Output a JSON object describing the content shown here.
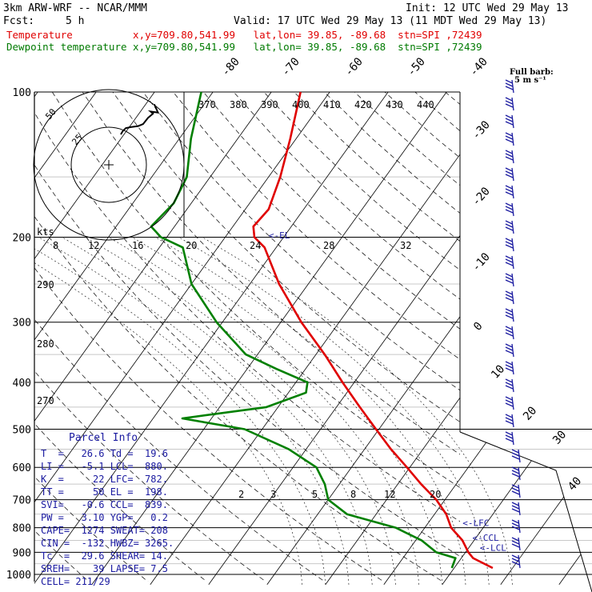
{
  "header": {
    "model": "3km ARW-WRF -- NCAR/MMM",
    "init": "Init: 12 UTC Wed 29 May 13",
    "fcst_label": "Fcst:",
    "fcst_value": "5 h",
    "valid": "Valid: 17 UTC Wed 29 May 13 (11 MDT Wed 29 May 13)",
    "temp_line": "Temperature          x,y=709.80,541.99   lat,lon= 39.85, -89.68  stn=SPI ,72439",
    "dew_line": "Dewpoint temperature x,y=709.80,541.99   lat,lon= 39.85, -89.68  stn=SPI ,72439",
    "barb_label_1": "Full barb:",
    "barb_label_2": "5 m s⁻¹"
  },
  "colors": {
    "temperature": "#e00000",
    "dewpoint": "#008000",
    "grid": "#000000",
    "info": "#1a1aa0"
  },
  "parcel_info": {
    "title": "Parcel Info",
    "rows": [
      "T  =   26.6 Td =  19.6",
      "LI =   -5.1 LCL=  880.",
      "K  =     22 LFC=  782.",
      "TT =     50 EL =  198.",
      "SVI=   -0.6 CCL=  839.",
      "PW =   3.10 YGP=   0.2",
      "CAPE=  1274 SWEAT= 208",
      "CIN =  -132 HWBZ= 3265.",
      "Tc  =  29.6 SHEAR= 14.",
      "SREH=    39 LAPSE= 7.5",
      "CELL= 211/29"
    ]
  },
  "chart_data": {
    "type": "line",
    "chart_kind": "skew-T log-P",
    "y_axis": "pressure (hPa)",
    "ylim": [
      1000,
      100
    ],
    "pressure_labels": [
      "100",
      "200",
      "300",
      "400",
      "500",
      "600",
      "700",
      "800",
      "900",
      "1000"
    ],
    "isotherm_labels": [
      {
        "v": "-80"
      },
      {
        "v": "-70"
      },
      {
        "v": "-60"
      },
      {
        "v": "-50"
      },
      {
        "v": "-40"
      },
      {
        "v": "-30"
      },
      {
        "v": "-20"
      },
      {
        "v": "-10"
      },
      {
        "v": "0"
      },
      {
        "v": "10"
      },
      {
        "v": "20"
      },
      {
        "v": "30"
      },
      {
        "v": "40"
      }
    ],
    "theta_labels": [
      "370",
      "380",
      "390",
      "400",
      "410",
      "420",
      "430",
      "440"
    ],
    "theta_left_labels": [
      "290",
      "280",
      "270"
    ],
    "mixing_ratio_top": [
      "8",
      "12",
      "16",
      "20",
      "24",
      "28",
      "32"
    ],
    "mixing_ratio_bottom": [
      "2",
      "3",
      "5",
      "8",
      "12",
      "20"
    ],
    "kts_label": "kts",
    "level_markers": [
      {
        "name": "EL",
        "p": 198,
        "label": "<-EL"
      },
      {
        "name": "LFC",
        "p": 782,
        "label": "<-LFC"
      },
      {
        "name": "CCL",
        "p": 839,
        "label": "<-CCL"
      },
      {
        "name": "LCL",
        "p": 880,
        "label": "<-LCL"
      }
    ],
    "series": [
      {
        "name": "Temperature",
        "values": [
          {
            "p": 970,
            "t": 26.6
          },
          {
            "p": 925,
            "t": 22
          },
          {
            "p": 900,
            "t": 20.5
          },
          {
            "p": 850,
            "t": 18
          },
          {
            "p": 800,
            "t": 14.5
          },
          {
            "p": 750,
            "t": 12
          },
          {
            "p": 700,
            "t": 8.5
          },
          {
            "p": 650,
            "t": 4
          },
          {
            "p": 600,
            "t": -0.5
          },
          {
            "p": 550,
            "t": -5.5
          },
          {
            "p": 500,
            "t": -10.5
          },
          {
            "p": 450,
            "t": -16
          },
          {
            "p": 400,
            "t": -22
          },
          {
            "p": 350,
            "t": -28.5
          },
          {
            "p": 300,
            "t": -36.5
          },
          {
            "p": 250,
            "t": -45
          },
          {
            "p": 210,
            "t": -52
          },
          {
            "p": 200,
            "t": -55
          },
          {
            "p": 190,
            "t": -56.5
          },
          {
            "p": 175,
            "t": -56
          },
          {
            "p": 150,
            "t": -58
          },
          {
            "p": 125,
            "t": -61
          },
          {
            "p": 100,
            "t": -65
          }
        ]
      },
      {
        "name": "Dewpoint temperature",
        "values": [
          {
            "p": 970,
            "t": 19.6
          },
          {
            "p": 925,
            "t": 19
          },
          {
            "p": 900,
            "t": 15
          },
          {
            "p": 850,
            "t": 11
          },
          {
            "p": 800,
            "t": 5
          },
          {
            "p": 750,
            "t": -5
          },
          {
            "p": 700,
            "t": -10
          },
          {
            "p": 650,
            "t": -12.5
          },
          {
            "p": 600,
            "t": -16
          },
          {
            "p": 550,
            "t": -23
          },
          {
            "p": 500,
            "t": -33
          },
          {
            "p": 475,
            "t": -45
          },
          {
            "p": 450,
            "t": -32
          },
          {
            "p": 420,
            "t": -27
          },
          {
            "p": 400,
            "t": -28
          },
          {
            "p": 375,
            "t": -35
          },
          {
            "p": 350,
            "t": -42
          },
          {
            "p": 300,
            "t": -51
          },
          {
            "p": 250,
            "t": -60
          },
          {
            "p": 210,
            "t": -66
          },
          {
            "p": 200,
            "t": -71
          },
          {
            "p": 190,
            "t": -74
          },
          {
            "p": 170,
            "t": -73
          },
          {
            "p": 150,
            "t": -74
          },
          {
            "p": 125,
            "t": -78
          },
          {
            "p": 100,
            "t": -82
          }
        ]
      }
    ],
    "hodograph": {
      "rings_kts": [
        "25",
        "50"
      ],
      "trace": [
        [
          0.0,
          0.0
        ],
        [
          1.5,
          3.0
        ],
        [
          4,
          6
        ],
        [
          8,
          7
        ],
        [
          14,
          8
        ],
        [
          18,
          10
        ],
        [
          22,
          16
        ],
        [
          26,
          20
        ],
        [
          24,
          22
        ],
        [
          30,
          21
        ],
        [
          27,
          29
        ]
      ]
    },
    "wind_barbs_right": 28
  }
}
